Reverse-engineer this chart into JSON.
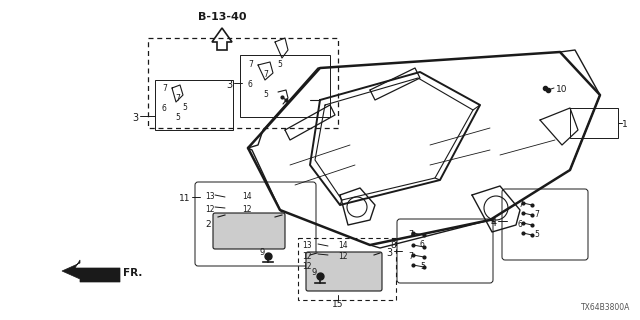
{
  "bg_color": "#ffffff",
  "line_color": "#1a1a1a",
  "text_color": "#1a1a1a",
  "figsize": [
    6.4,
    3.2
  ],
  "dpi": 100,
  "diagram_ref": "B-13-40",
  "part_number": "TX64B3800A",
  "fr_label": "FR."
}
